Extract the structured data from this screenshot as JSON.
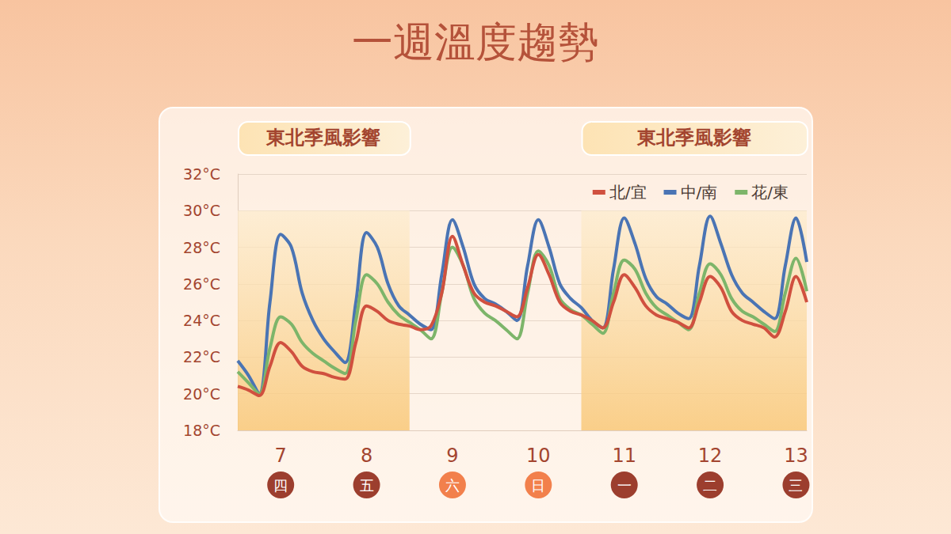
{
  "chart_data": {
    "type": "line",
    "title": "一週溫度趨勢",
    "categories": [
      null,
      null,
      null,
      null,
      "7",
      null,
      null,
      null,
      null,
      null,
      null,
      null,
      "8",
      null,
      null,
      null,
      null,
      null,
      null,
      null,
      "9",
      null,
      null,
      null,
      null,
      null,
      null,
      null,
      "10",
      null,
      null,
      null,
      null,
      null,
      null,
      null,
      "11",
      null,
      null,
      null,
      null,
      null,
      null,
      null,
      "12",
      null,
      null,
      null,
      null,
      null,
      null,
      null,
      "13",
      null
    ],
    "weekdays": [
      {
        "label": "四",
        "color": "#9c3e2e"
      },
      {
        "label": "五",
        "color": "#9c3e2e"
      },
      {
        "label": "六",
        "color": "#f2804c"
      },
      {
        "label": "日",
        "color": "#f2804c"
      },
      {
        "label": "一",
        "color": "#9c3e2e"
      },
      {
        "label": "二",
        "color": "#9c3e2e"
      },
      {
        "label": "三",
        "color": "#9c3e2e"
      }
    ],
    "series": [
      {
        "name": "北/宜",
        "color": "#d0503f",
        "values": [
          20.4,
          20.2,
          19.9,
          21.5,
          22.8,
          22.3,
          21.5,
          21.2,
          21.1,
          20.9,
          20.8,
          22.8,
          24.8,
          24.5,
          24.0,
          23.8,
          23.7,
          23.5,
          23.7,
          25.5,
          28.6,
          27.0,
          25.5,
          25.0,
          24.8,
          24.5,
          24.2,
          25.8,
          27.6,
          26.5,
          25.0,
          24.5,
          24.3,
          24.0,
          23.6,
          25.0,
          26.5,
          25.8,
          24.8,
          24.3,
          24.1,
          23.9,
          23.6,
          25.0,
          26.4,
          25.8,
          24.5,
          24.0,
          23.8,
          23.6,
          23.1,
          24.5,
          26.4,
          25.0
        ]
      },
      {
        "name": "中/南",
        "color": "#4a74b4",
        "values": [
          21.8,
          21.0,
          20.0,
          25.0,
          28.7,
          28.0,
          25.5,
          24.0,
          23.0,
          22.3,
          21.7,
          25.0,
          28.8,
          28.0,
          26.0,
          24.8,
          24.3,
          23.8,
          23.5,
          26.5,
          29.5,
          28.0,
          26.0,
          25.2,
          24.9,
          24.5,
          24.0,
          27.0,
          29.5,
          28.0,
          26.0,
          25.2,
          24.7,
          24.0,
          23.6,
          26.8,
          29.6,
          28.2,
          26.3,
          25.3,
          24.9,
          24.4,
          24.1,
          27.0,
          29.7,
          28.2,
          26.5,
          25.5,
          25.0,
          24.5,
          24.1,
          27.0,
          29.6,
          27.2
        ]
      },
      {
        "name": "花/東",
        "color": "#7db56a",
        "values": [
          21.2,
          20.6,
          20.0,
          22.5,
          24.2,
          23.8,
          22.8,
          22.2,
          21.8,
          21.4,
          21.1,
          24.0,
          26.5,
          26.0,
          25.0,
          24.3,
          23.9,
          23.5,
          23.0,
          25.5,
          28.0,
          27.0,
          25.2,
          24.4,
          24.0,
          23.5,
          23.0,
          25.5,
          27.8,
          27.0,
          25.2,
          24.6,
          24.3,
          23.8,
          23.3,
          25.5,
          27.3,
          26.8,
          25.5,
          24.7,
          24.3,
          23.9,
          23.5,
          25.5,
          27.1,
          26.5,
          25.2,
          24.5,
          24.2,
          23.8,
          23.4,
          25.5,
          27.4,
          25.6
        ]
      }
    ],
    "annotations": [
      {
        "text": "東北季風影響",
        "start": 0,
        "end": 16,
        "y_range": [
          18,
          30
        ]
      },
      {
        "text": "東北季風影響",
        "start": 32,
        "end": 53,
        "y_range": [
          18,
          30
        ]
      }
    ],
    "ylim": [
      18,
      32
    ],
    "yticks": [
      {
        "value": 18,
        "label": "18°C"
      },
      {
        "value": 20,
        "label": "20°C"
      },
      {
        "value": 22,
        "label": "22°C"
      },
      {
        "value": 24,
        "label": "24°C"
      },
      {
        "value": 26,
        "label": "26°C"
      },
      {
        "value": 28,
        "label": "28°C"
      },
      {
        "value": 30,
        "label": "30°C"
      },
      {
        "value": 32,
        "label": "32°C"
      }
    ],
    "grid": true,
    "legend": "top-right"
  }
}
